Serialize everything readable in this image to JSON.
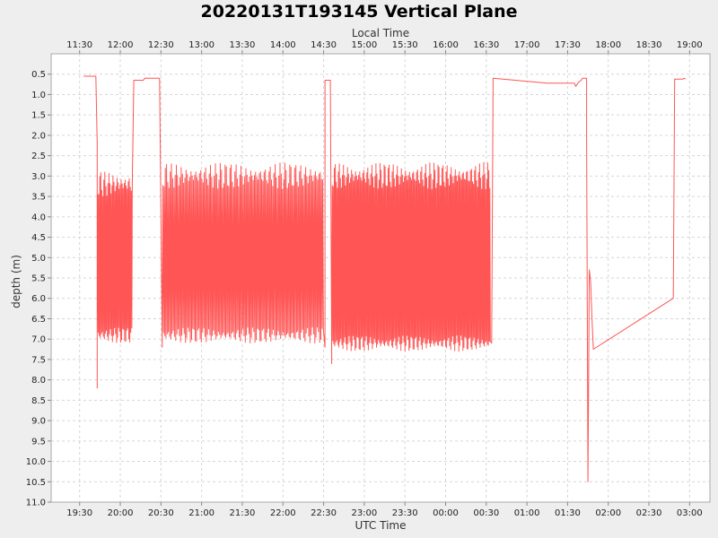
{
  "chart_data": {
    "type": "line",
    "title": "20220131T193145 Vertical Plane",
    "xlabel": "UTC Time",
    "x2label": "Local Time",
    "ylabel": "depth (m)",
    "y_inverted": true,
    "ylim": [
      0.0,
      11.0
    ],
    "yticks": [
      "0.5",
      "1.0",
      "1.5",
      "2.0",
      "2.5",
      "3.0",
      "3.5",
      "4.0",
      "4.5",
      "5.0",
      "5.5",
      "6.0",
      "6.5",
      "7.0",
      "7.5",
      "8.0",
      "8.5",
      "9.0",
      "9.5",
      "10.0",
      "10.5",
      "11.0"
    ],
    "xlim_utc": [
      "19:09",
      "03:15"
    ],
    "xticks_utc": [
      "19:30",
      "20:00",
      "20:30",
      "21:00",
      "21:30",
      "22:00",
      "22:30",
      "23:00",
      "23:30",
      "00:00",
      "00:30",
      "01:00",
      "01:30",
      "02:00",
      "02:30",
      "03:00"
    ],
    "xticks_local": [
      "11:30",
      "12:00",
      "12:30",
      "13:00",
      "13:30",
      "14:00",
      "14:30",
      "15:00",
      "15:30",
      "16:00",
      "16:30",
      "17:00",
      "17:30",
      "18:00",
      "18:30",
      "19:00"
    ],
    "grid": true,
    "series_color": "#ff5555",
    "series": [
      {
        "segments": [
          {
            "t": [
              "19:33",
              "19:42"
            ],
            "depth": [
              0.55,
              0.55
            ]
          },
          {
            "t": [
              "19:43"
            ],
            "depth": [
              2.2
            ]
          },
          {
            "t": [
              "19:43"
            ],
            "depth": [
              8.2
            ]
          },
          {
            "yoyo": [
              "19:43",
              "20:09"
            ],
            "depth_range": [
              3.2,
              6.9
            ],
            "period_min": 0.75
          },
          {
            "t": [
              "20:10",
              "20:17",
              "20:18",
              "20:29"
            ],
            "depth": [
              0.65,
              0.65,
              0.6,
              0.6
            ]
          },
          {
            "t": [
              "20:31"
            ],
            "depth": [
              7.2
            ]
          },
          {
            "yoyo": [
              "20:31",
              "22:30"
            ],
            "depth_range": [
              3.0,
              6.9
            ],
            "period_min": 0.9
          },
          {
            "t": [
              "22:31"
            ],
            "depth": [
              7.2
            ]
          },
          {
            "t": [
              "22:31",
              "22:35"
            ],
            "depth": [
              0.65,
              0.65
            ]
          },
          {
            "t": [
              "22:36"
            ],
            "depth": [
              7.6
            ]
          },
          {
            "yoyo": [
              "22:36",
              "00:33"
            ],
            "depth_range": [
              3.0,
              7.1
            ],
            "period_min": 0.75
          },
          {
            "t": [
              "00:34",
              "00:35",
              "01:15",
              "01:35"
            ],
            "depth": [
              7.1,
              0.6,
              0.72,
              0.72
            ]
          },
          {
            "t": [
              "01:36",
              "01:38",
              "01:40",
              "01:41",
              "01:44",
              "01:44"
            ],
            "depth": [
              0.8,
              0.7,
              0.65,
              0.6,
              0.6,
              2.0
            ]
          },
          {
            "t": [
              "01:45",
              "01:46",
              "01:47",
              "01:48",
              "01:49",
              "02:48",
              "02:49",
              "02:55",
              "02:56",
              "02:57"
            ],
            "depth": [
              10.5,
              5.3,
              5.6,
              6.5,
              7.25,
              6.0,
              0.62,
              0.62,
              0.6,
              0.62
            ]
          }
        ]
      }
    ]
  }
}
